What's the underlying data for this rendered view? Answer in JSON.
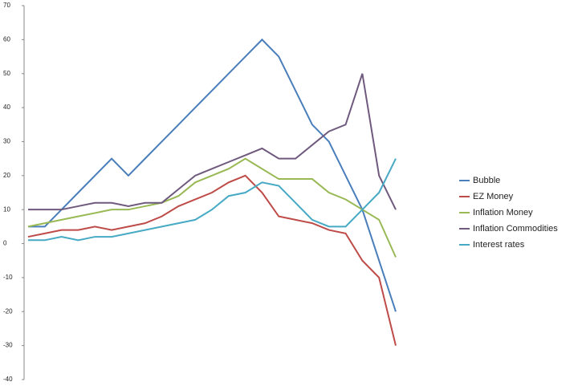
{
  "chart_data": {
    "type": "line",
    "categories": [
      null,
      null,
      null,
      null,
      null,
      null,
      null,
      null,
      null,
      null,
      null,
      null,
      null,
      null,
      null,
      null,
      null,
      null,
      null,
      null,
      null,
      null,
      null
    ],
    "series": [
      {
        "name": "Bubble",
        "color": "#4a7ebb",
        "values": [
          5,
          5,
          10,
          15,
          20,
          25,
          20,
          25,
          30,
          35,
          40,
          45,
          50,
          55,
          60,
          55,
          45,
          35,
          30,
          20,
          10,
          -5,
          -20
        ]
      },
      {
        "name": "EZ Money",
        "color": "#be4b48",
        "values": [
          2,
          3,
          4,
          4,
          5,
          4,
          5,
          6,
          8,
          11,
          13,
          15,
          18,
          20,
          15,
          8,
          7,
          6,
          4,
          3,
          -5,
          -10,
          -30
        ]
      },
      {
        "name": "Inflation Money",
        "color": "#98b954",
        "values": [
          5,
          6,
          7,
          8,
          9,
          10,
          10,
          11,
          12,
          14,
          18,
          20,
          22,
          25,
          22,
          19,
          19,
          19,
          15,
          13,
          10,
          7,
          -4
        ]
      },
      {
        "name": "Inflation  Commodities",
        "color": "#6f5a7e",
        "values": [
          10,
          10,
          10,
          11,
          12,
          12,
          11,
          12,
          12,
          16,
          20,
          22,
          24,
          26,
          28,
          25,
          25,
          29,
          33,
          35,
          50,
          20,
          10
        ]
      },
      {
        "name": "Interest rates",
        "color": "#46aac5",
        "values": [
          1,
          1,
          2,
          1,
          2,
          2,
          3,
          4,
          5,
          6,
          7,
          10,
          14,
          15,
          18,
          17,
          12,
          7,
          5,
          5,
          10,
          15,
          25
        ]
      }
    ],
    "ylim": [
      -40,
      70
    ],
    "yticks": [
      -40,
      -30,
      -20,
      -10,
      0,
      10,
      20,
      30,
      40,
      50,
      60,
      70
    ],
    "grid": false,
    "legend": "right"
  }
}
